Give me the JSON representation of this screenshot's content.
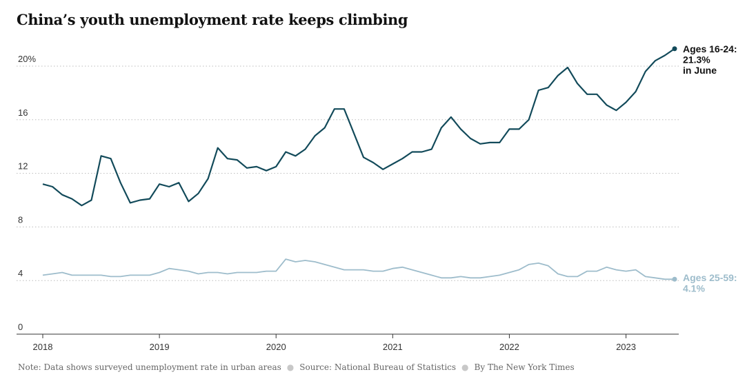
{
  "title": "China’s youth unemployment rate keeps climbing",
  "footer": {
    "note": "Note: Data shows surveyed unemployment rate in urban areas",
    "source": "Source: National Bureau of Statistics",
    "credit": "By The New York Times"
  },
  "chart_data": {
    "type": "line",
    "title": "China’s youth unemployment rate keeps climbing",
    "xlabel": "",
    "ylabel": "",
    "ylim": [
      0,
      22
    ],
    "yticks": [
      0,
      4,
      8,
      12,
      16,
      20
    ],
    "ytick_labels": [
      "0",
      "4",
      "8",
      "12",
      "16",
      "20%"
    ],
    "xticks": [
      "2018",
      "2019",
      "2020",
      "2021",
      "2022",
      "2023"
    ],
    "grid": true,
    "x_start": "2018-01",
    "x_end": "2023-06",
    "series": [
      {
        "name": "Ages 16-24",
        "color": "#124a5a",
        "label_lines": [
          "Ages 16-24:",
          "21.3%",
          "in June"
        ],
        "x": [
          "2018-01",
          "2018-02",
          "2018-03",
          "2018-04",
          "2018-05",
          "2018-06",
          "2018-07",
          "2018-08",
          "2018-09",
          "2018-10",
          "2018-11",
          "2018-12",
          "2019-01",
          "2019-02",
          "2019-03",
          "2019-04",
          "2019-05",
          "2019-06",
          "2019-07",
          "2019-08",
          "2019-09",
          "2019-10",
          "2019-11",
          "2019-12",
          "2020-01",
          "2020-02",
          "2020-03",
          "2020-04",
          "2020-05",
          "2020-06",
          "2020-07",
          "2020-08",
          "2020-09",
          "2020-10",
          "2020-11",
          "2020-12",
          "2021-01",
          "2021-02",
          "2021-03",
          "2021-04",
          "2021-05",
          "2021-06",
          "2021-07",
          "2021-08",
          "2021-09",
          "2021-10",
          "2021-11",
          "2021-12",
          "2022-01",
          "2022-02",
          "2022-03",
          "2022-04",
          "2022-05",
          "2022-06",
          "2022-07",
          "2022-08",
          "2022-09",
          "2022-10",
          "2022-11",
          "2022-12",
          "2023-01",
          "2023-02",
          "2023-03",
          "2023-04",
          "2023-05",
          "2023-06"
        ],
        "values": [
          11.2,
          11.0,
          10.4,
          10.1,
          9.6,
          10.0,
          13.3,
          13.1,
          11.3,
          9.8,
          10.0,
          10.1,
          11.2,
          11.0,
          11.3,
          9.9,
          10.5,
          11.6,
          13.9,
          13.1,
          13.0,
          12.4,
          12.5,
          12.2,
          12.5,
          13.6,
          13.3,
          13.8,
          14.8,
          15.4,
          16.8,
          16.8,
          15.0,
          13.2,
          12.8,
          12.3,
          12.7,
          13.1,
          13.6,
          13.6,
          13.8,
          15.4,
          16.2,
          15.3,
          14.6,
          14.2,
          14.3,
          14.3,
          15.3,
          15.3,
          16.0,
          18.2,
          18.4,
          19.3,
          19.9,
          18.7,
          17.9,
          17.9,
          17.1,
          16.7,
          17.3,
          18.1,
          19.6,
          20.4,
          20.8,
          21.3
        ]
      },
      {
        "name": "Ages 25-59",
        "color": "#9dbccb",
        "label_lines": [
          "Ages 25-59:",
          "4.1%"
        ],
        "x": [
          "2018-01",
          "2018-02",
          "2018-03",
          "2018-04",
          "2018-05",
          "2018-06",
          "2018-07",
          "2018-08",
          "2018-09",
          "2018-10",
          "2018-11",
          "2018-12",
          "2019-01",
          "2019-02",
          "2019-03",
          "2019-04",
          "2019-05",
          "2019-06",
          "2019-07",
          "2019-08",
          "2019-09",
          "2019-10",
          "2019-11",
          "2019-12",
          "2020-01",
          "2020-02",
          "2020-03",
          "2020-04",
          "2020-05",
          "2020-06",
          "2020-07",
          "2020-08",
          "2020-09",
          "2020-10",
          "2020-11",
          "2020-12",
          "2021-01",
          "2021-02",
          "2021-03",
          "2021-04",
          "2021-05",
          "2021-06",
          "2021-07",
          "2021-08",
          "2021-09",
          "2021-10",
          "2021-11",
          "2021-12",
          "2022-01",
          "2022-02",
          "2022-03",
          "2022-04",
          "2022-05",
          "2022-06",
          "2022-07",
          "2022-08",
          "2022-09",
          "2022-10",
          "2022-11",
          "2022-12",
          "2023-01",
          "2023-02",
          "2023-03",
          "2023-04",
          "2023-05",
          "2023-06"
        ],
        "values": [
          4.4,
          4.5,
          4.6,
          4.4,
          4.4,
          4.4,
          4.4,
          4.3,
          4.3,
          4.4,
          4.4,
          4.4,
          4.6,
          4.9,
          4.8,
          4.7,
          4.5,
          4.6,
          4.6,
          4.5,
          4.6,
          4.6,
          4.6,
          4.7,
          4.7,
          5.6,
          5.4,
          5.5,
          5.4,
          5.2,
          5.0,
          4.8,
          4.8,
          4.8,
          4.7,
          4.7,
          4.9,
          5.0,
          4.8,
          4.6,
          4.4,
          4.2,
          4.2,
          4.3,
          4.2,
          4.2,
          4.3,
          4.4,
          4.6,
          4.8,
          5.2,
          5.3,
          5.1,
          4.5,
          4.3,
          4.3,
          4.7,
          4.7,
          5.0,
          4.8,
          4.7,
          4.8,
          4.3,
          4.2,
          4.1,
          4.1
        ]
      }
    ]
  }
}
